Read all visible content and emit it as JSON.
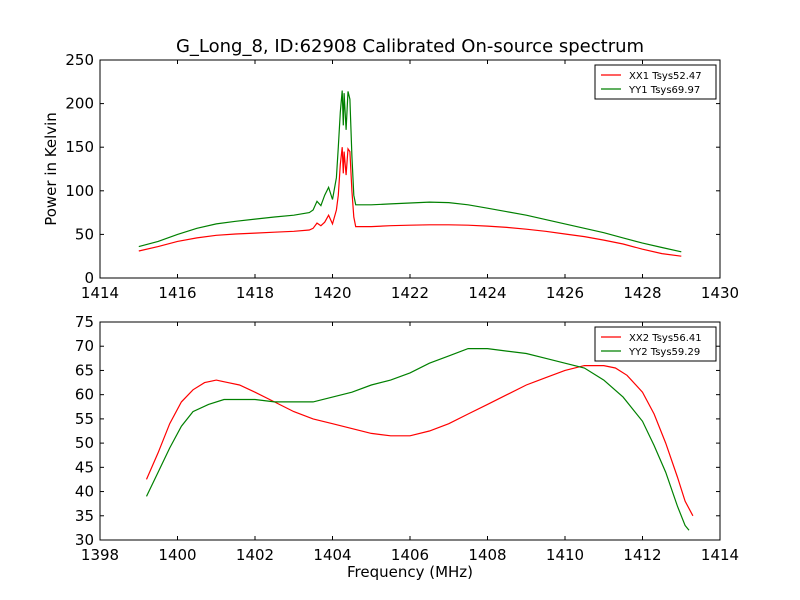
{
  "title": "G_Long_8, ID:62908 Calibrated On-source spectrum",
  "chart_data": [
    {
      "type": "line",
      "xlabel": "",
      "ylabel": "Power in Kelvin",
      "xlim": [
        1414,
        1430
      ],
      "ylim": [
        0,
        250
      ],
      "xticks": [
        "1414",
        "1416",
        "1418",
        "1420",
        "1422",
        "1424",
        "1426",
        "1428",
        "1430"
      ],
      "yticks": [
        "0",
        "50",
        "100",
        "150",
        "200",
        "250"
      ],
      "legend_position": "top-right",
      "series": [
        {
          "name": "XX1 Tsys52.47",
          "color": "#ff0000",
          "points": [
            [
              1415.0,
              31
            ],
            [
              1415.5,
              36
            ],
            [
              1416.0,
              42
            ],
            [
              1416.5,
              46
            ],
            [
              1417.0,
              49
            ],
            [
              1417.5,
              50.5
            ],
            [
              1418.0,
              51.5
            ],
            [
              1418.5,
              52.5
            ],
            [
              1419.0,
              53.5
            ],
            [
              1419.4,
              55
            ],
            [
              1419.5,
              57
            ],
            [
              1419.6,
              63
            ],
            [
              1419.7,
              60
            ],
            [
              1419.8,
              64
            ],
            [
              1419.9,
              72
            ],
            [
              1420.0,
              62
            ],
            [
              1420.1,
              78
            ],
            [
              1420.15,
              95
            ],
            [
              1420.2,
              130
            ],
            [
              1420.25,
              150
            ],
            [
              1420.28,
              120
            ],
            [
              1420.3,
              145
            ],
            [
              1420.35,
              118
            ],
            [
              1420.4,
              148
            ],
            [
              1420.45,
              145
            ],
            [
              1420.5,
              100
            ],
            [
              1420.55,
              70
            ],
            [
              1420.6,
              59
            ],
            [
              1421.0,
              59
            ],
            [
              1421.5,
              60
            ],
            [
              1422.0,
              60.5
            ],
            [
              1422.5,
              61
            ],
            [
              1423.0,
              61
            ],
            [
              1423.5,
              60.5
            ],
            [
              1424.0,
              59.5
            ],
            [
              1424.5,
              58
            ],
            [
              1425.0,
              56
            ],
            [
              1425.5,
              53.5
            ],
            [
              1426.0,
              50.5
            ],
            [
              1426.5,
              47.5
            ],
            [
              1427.0,
              43.5
            ],
            [
              1427.5,
              39
            ],
            [
              1428.0,
              33
            ],
            [
              1428.5,
              28
            ],
            [
              1429.0,
              25
            ]
          ]
        },
        {
          "name": "YY1 Tsys69.97",
          "color": "#008000",
          "points": [
            [
              1415.0,
              36
            ],
            [
              1415.5,
              42
            ],
            [
              1416.0,
              50
            ],
            [
              1416.5,
              57
            ],
            [
              1417.0,
              62
            ],
            [
              1417.5,
              65
            ],
            [
              1418.0,
              67.5
            ],
            [
              1418.5,
              70
            ],
            [
              1419.0,
              72
            ],
            [
              1419.4,
              75
            ],
            [
              1419.5,
              78
            ],
            [
              1419.6,
              88
            ],
            [
              1419.7,
              83
            ],
            [
              1419.8,
              95
            ],
            [
              1419.9,
              104
            ],
            [
              1420.0,
              90
            ],
            [
              1420.1,
              115
            ],
            [
              1420.15,
              150
            ],
            [
              1420.2,
              190
            ],
            [
              1420.25,
              215
            ],
            [
              1420.28,
              175
            ],
            [
              1420.3,
              212
            ],
            [
              1420.35,
              170
            ],
            [
              1420.4,
              214
            ],
            [
              1420.45,
              205
            ],
            [
              1420.5,
              140
            ],
            [
              1420.55,
              95
            ],
            [
              1420.6,
              84
            ],
            [
              1421.0,
              84
            ],
            [
              1421.5,
              85
            ],
            [
              1422.0,
              86
            ],
            [
              1422.5,
              87
            ],
            [
              1423.0,
              86.5
            ],
            [
              1423.5,
              84
            ],
            [
              1424.0,
              80
            ],
            [
              1424.5,
              76
            ],
            [
              1425.0,
              72
            ],
            [
              1425.5,
              67
            ],
            [
              1426.0,
              62
            ],
            [
              1426.5,
              57
            ],
            [
              1427.0,
              52
            ],
            [
              1427.5,
              46
            ],
            [
              1428.0,
              40
            ],
            [
              1428.5,
              35
            ],
            [
              1429.0,
              30
            ]
          ]
        }
      ]
    },
    {
      "type": "line",
      "xlabel": "Frequency (MHz)",
      "ylabel": "",
      "xlim": [
        1398,
        1414
      ],
      "ylim": [
        30,
        75
      ],
      "xticks": [
        "1398",
        "1400",
        "1402",
        "1404",
        "1406",
        "1408",
        "1410",
        "1412",
        "1414"
      ],
      "yticks": [
        "30",
        "35",
        "40",
        "45",
        "50",
        "55",
        "60",
        "65",
        "70",
        "75"
      ],
      "legend_position": "top-right",
      "series": [
        {
          "name": "XX2 Tsys56.41",
          "color": "#ff0000",
          "points": [
            [
              1399.2,
              42.5
            ],
            [
              1399.5,
              48
            ],
            [
              1399.8,
              54
            ],
            [
              1400.1,
              58.5
            ],
            [
              1400.4,
              61
            ],
            [
              1400.7,
              62.5
            ],
            [
              1401.0,
              63
            ],
            [
              1401.3,
              62.5
            ],
            [
              1401.6,
              62
            ],
            [
              1402.0,
              60.5
            ],
            [
              1402.5,
              58.5
            ],
            [
              1403.0,
              56.5
            ],
            [
              1403.5,
              55
            ],
            [
              1404.0,
              54
            ],
            [
              1404.5,
              53
            ],
            [
              1405.0,
              52
            ],
            [
              1405.5,
              51.5
            ],
            [
              1406.0,
              51.5
            ],
            [
              1406.5,
              52.5
            ],
            [
              1407.0,
              54
            ],
            [
              1407.5,
              56
            ],
            [
              1408.0,
              58
            ],
            [
              1408.5,
              60
            ],
            [
              1409.0,
              62
            ],
            [
              1409.5,
              63.5
            ],
            [
              1410.0,
              65
            ],
            [
              1410.5,
              66
            ],
            [
              1411.0,
              66
            ],
            [
              1411.3,
              65.5
            ],
            [
              1411.6,
              64
            ],
            [
              1412.0,
              60.5
            ],
            [
              1412.3,
              56
            ],
            [
              1412.6,
              50
            ],
            [
              1412.9,
              43
            ],
            [
              1413.1,
              38
            ],
            [
              1413.3,
              35
            ]
          ]
        },
        {
          "name": "YY2 Tsys59.29",
          "color": "#008000",
          "points": [
            [
              1399.2,
              39
            ],
            [
              1399.5,
              44
            ],
            [
              1399.8,
              49
            ],
            [
              1400.1,
              53.5
            ],
            [
              1400.4,
              56.5
            ],
            [
              1400.8,
              58
            ],
            [
              1401.2,
              59
            ],
            [
              1401.6,
              59
            ],
            [
              1402.0,
              59
            ],
            [
              1402.5,
              58.5
            ],
            [
              1403.0,
              58.5
            ],
            [
              1403.5,
              58.5
            ],
            [
              1404.0,
              59.5
            ],
            [
              1404.5,
              60.5
            ],
            [
              1405.0,
              62
            ],
            [
              1405.5,
              63
            ],
            [
              1406.0,
              64.5
            ],
            [
              1406.5,
              66.5
            ],
            [
              1407.0,
              68
            ],
            [
              1407.5,
              69.5
            ],
            [
              1408.0,
              69.5
            ],
            [
              1408.5,
              69
            ],
            [
              1409.0,
              68.5
            ],
            [
              1409.5,
              67.5
            ],
            [
              1410.0,
              66.5
            ],
            [
              1410.5,
              65.5
            ],
            [
              1411.0,
              63
            ],
            [
              1411.5,
              59.5
            ],
            [
              1412.0,
              54.5
            ],
            [
              1412.3,
              49.5
            ],
            [
              1412.6,
              44
            ],
            [
              1412.9,
              37
            ],
            [
              1413.1,
              33
            ],
            [
              1413.2,
              32
            ]
          ]
        }
      ]
    }
  ]
}
